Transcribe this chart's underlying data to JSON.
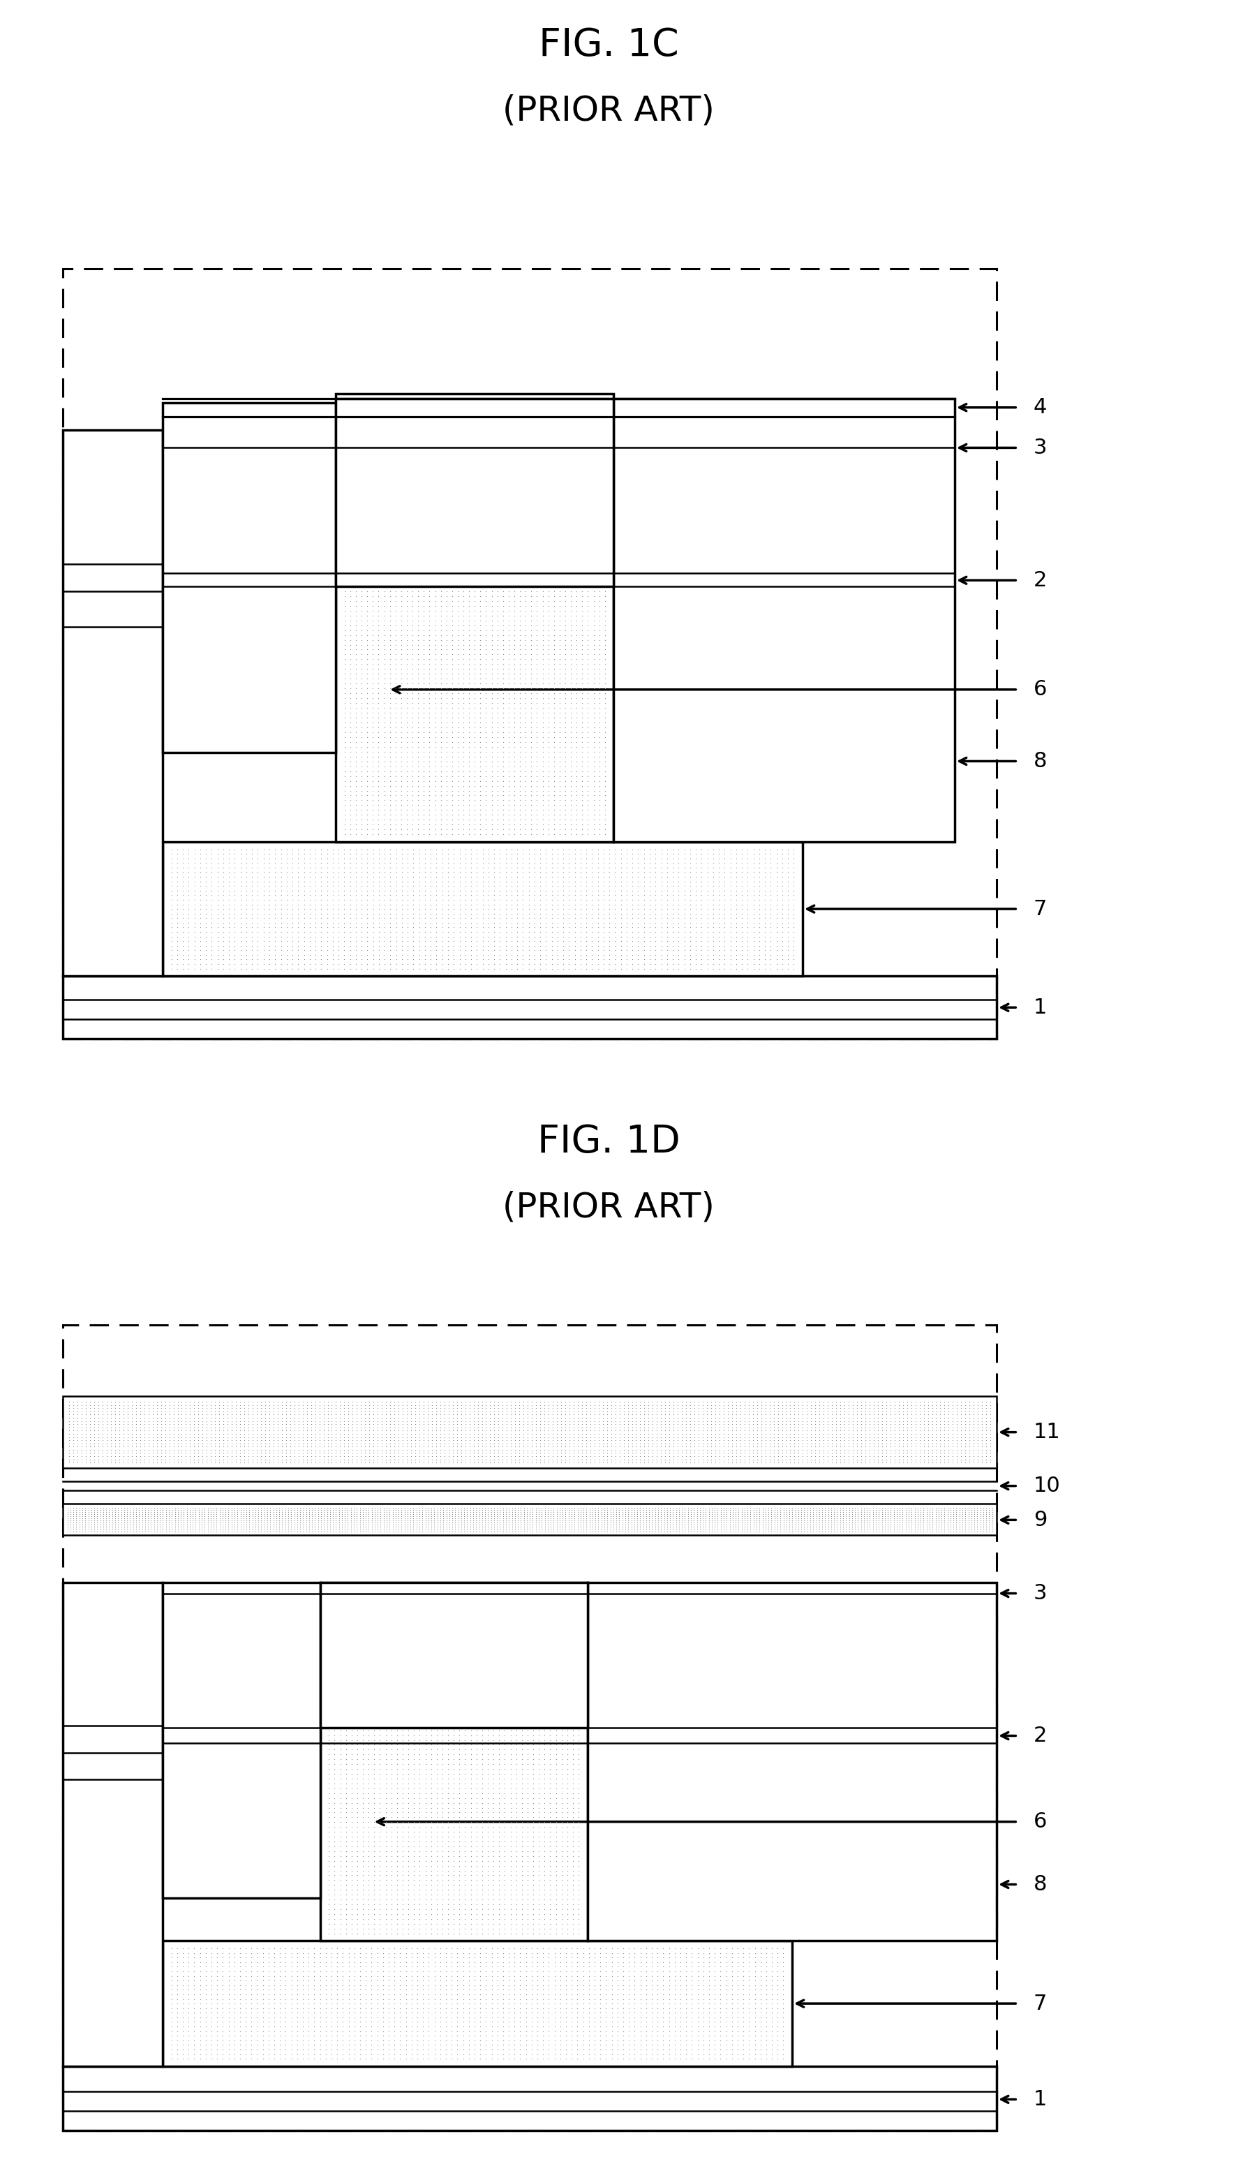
{
  "fig1c_title": "FIG. 1C",
  "fig1c_subtitle": "(PRIOR ART)",
  "fig1d_title": "FIG. 1D",
  "fig1d_subtitle": "(PRIOR ART)",
  "bg_color": "#ffffff",
  "black": "#000000",
  "dot_color": "#c8c8c8",
  "white": "#ffffff",
  "lw_main": 2.5,
  "lw_thin": 1.8,
  "label_fontsize": 22,
  "title_fontsize": 40,
  "subtitle_fontsize": 36
}
